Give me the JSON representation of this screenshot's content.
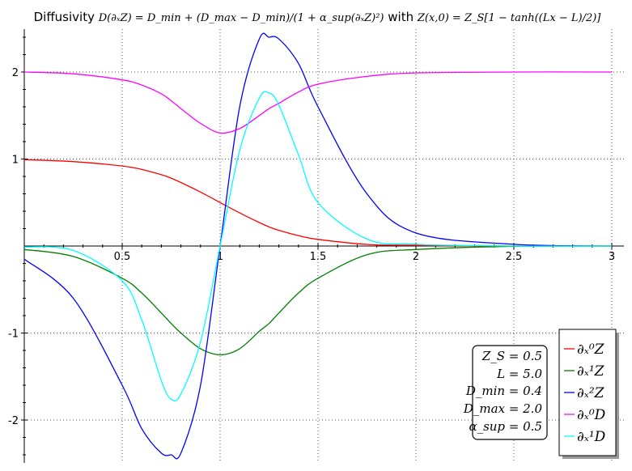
{
  "chart_data": {
    "type": "line",
    "title": {
      "prefix": "Diffusivity ",
      "formula": "D(∂ₓZ) = D_min + (D_max − D_min)/(1 + α_sup(∂ₓZ)²)",
      "joiner": " with ",
      "initial": "Z(x,0) = Z_S[1 − tanh((Lx − L)/2)]"
    },
    "xlim": [
      0,
      3.05
    ],
    "ylim": [
      -2.5,
      2.5
    ],
    "x_ticks": [
      0.5,
      1,
      1.5,
      2,
      2.5,
      3
    ],
    "x_tick_labels": [
      "0.5",
      "1",
      "1.5",
      "2",
      "2.5",
      "3"
    ],
    "y_ticks": [
      -2,
      -1,
      1,
      2
    ],
    "y_tick_labels": [
      "-2",
      "-1",
      "1",
      "2"
    ],
    "grid": true,
    "parameters": {
      "Z_S": 0.5,
      "L": 5.0,
      "D_min": 0.4,
      "D_max": 2.0,
      "alpha_sup": 0.5
    },
    "params_box": {
      "lines": [
        "Z_S = 0.5",
        "L = 5.0",
        "D_min = 0.4",
        "D_max = 2.0",
        "α_sup = 0.5"
      ]
    },
    "legend_position": "bottom-right",
    "x_samples": [
      0.0,
      0.25,
      0.5,
      0.6,
      0.7,
      0.75,
      0.8,
      0.9,
      1.0,
      1.1,
      1.2,
      1.25,
      1.3,
      1.4,
      1.5,
      1.75,
      2.0,
      2.5,
      3.0
    ],
    "series": [
      {
        "name": "∂ₓ⁰Z",
        "color": "#ff0000",
        "values": [
          0.993,
          0.97,
          0.92,
          0.88,
          0.82,
          0.78,
          0.73,
          0.62,
          0.5,
          0.38,
          0.27,
          0.22,
          0.18,
          0.12,
          0.076,
          0.019,
          0.007,
          0.0,
          0.0
        ]
      },
      {
        "name": "∂ₓ¹Z",
        "color": "#008000",
        "values": [
          -0.04,
          -0.12,
          -0.37,
          -0.54,
          -0.77,
          -0.89,
          -1.0,
          -1.18,
          -1.25,
          -1.18,
          -0.98,
          -0.89,
          -0.77,
          -0.54,
          -0.37,
          -0.1,
          -0.04,
          -0.003,
          0.0
        ]
      },
      {
        "name": "∂ₓ²Z",
        "color": "#0000ff",
        "values": [
          -0.15,
          -0.6,
          -1.6,
          -2.1,
          -2.38,
          -2.4,
          -2.38,
          -1.6,
          0.0,
          1.6,
          2.38,
          2.4,
          2.38,
          2.1,
          1.6,
          0.6,
          0.15,
          0.02,
          0.0
        ]
      },
      {
        "name": "∂ₓ⁰D",
        "color": "#ff00ff",
        "values": [
          2.0,
          1.98,
          1.91,
          1.85,
          1.75,
          1.67,
          1.58,
          1.41,
          1.3,
          1.35,
          1.5,
          1.58,
          1.64,
          1.77,
          1.86,
          1.95,
          1.99,
          2.0,
          2.0
        ]
      },
      {
        "name": "∂ₓ¹D",
        "color": "#00ffff",
        "values": [
          -0.01,
          -0.05,
          -0.4,
          -0.85,
          -1.55,
          -1.76,
          -1.7,
          -1.1,
          0.0,
          1.1,
          1.7,
          1.76,
          1.62,
          1.05,
          0.5,
          0.08,
          0.02,
          0.0,
          0.0
        ]
      }
    ]
  }
}
